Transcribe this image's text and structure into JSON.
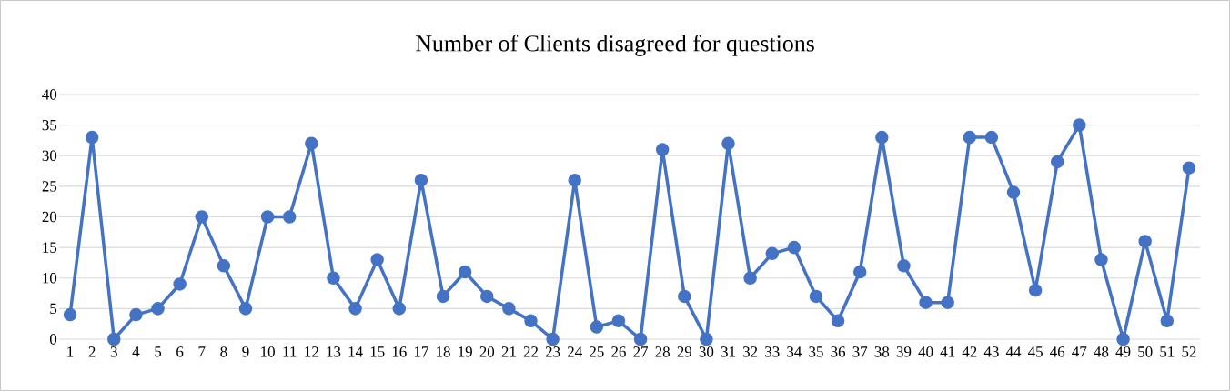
{
  "chart_data": {
    "type": "line",
    "title": "Number of Clients disagreed for questions",
    "categories": [
      "1",
      "2",
      "3",
      "4",
      "5",
      "6",
      "7",
      "8",
      "9",
      "10",
      "11",
      "12",
      "13",
      "14",
      "15",
      "16",
      "17",
      "18",
      "19",
      "20",
      "21",
      "22",
      "23",
      "24",
      "25",
      "26",
      "27",
      "28",
      "29",
      "30",
      "31",
      "32",
      "33",
      "34",
      "35",
      "36",
      "37",
      "38",
      "39",
      "40",
      "41",
      "42",
      "43",
      "44",
      "45",
      "46",
      "47",
      "48",
      "49",
      "50",
      "51",
      "52"
    ],
    "values": [
      4,
      33,
      0,
      4,
      5,
      9,
      20,
      12,
      5,
      20,
      20,
      32,
      10,
      5,
      13,
      5,
      26,
      7,
      11,
      7,
      5,
      3,
      0,
      26,
      2,
      3,
      0,
      31,
      7,
      0,
      32,
      10,
      14,
      15,
      7,
      3,
      11,
      33,
      12,
      6,
      6,
      33,
      33,
      24,
      8,
      29,
      35,
      13,
      0,
      16,
      3,
      28
    ],
    "color": "#4472c4",
    "ylim": [
      0,
      40
    ],
    "yticks": [
      0,
      5,
      10,
      15,
      20,
      25,
      30,
      35,
      40
    ],
    "grid": "y",
    "marker": "circle",
    "line_style": "solid"
  }
}
